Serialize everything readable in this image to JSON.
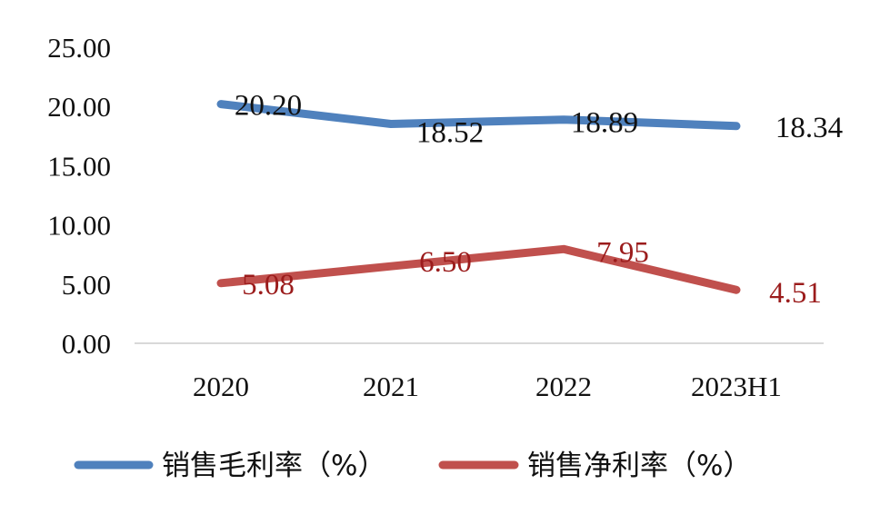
{
  "chart_data": {
    "type": "line",
    "categories": [
      "2020",
      "2021",
      "2022",
      "2023H1"
    ],
    "ylim": [
      0,
      25
    ],
    "yticks": [
      "0.00",
      "5.00",
      "10.00",
      "15.00",
      "20.00",
      "25.00"
    ],
    "grid": false,
    "legend_position": "bottom",
    "series": [
      {
        "name": "销售毛利率（%）",
        "values": [
          20.2,
          18.52,
          18.89,
          18.34
        ],
        "labels": [
          "20.20",
          "18.52",
          "18.89",
          "18.34"
        ],
        "color": "#4f81bd",
        "label_color": "#111111"
      },
      {
        "name": "销售净利率（%）",
        "values": [
          5.08,
          6.5,
          7.95,
          4.51
        ],
        "labels": [
          "5.08",
          "6.50",
          "7.95",
          "4.51"
        ],
        "color": "#c0504d",
        "label_color": "#9b1c1c"
      }
    ]
  }
}
